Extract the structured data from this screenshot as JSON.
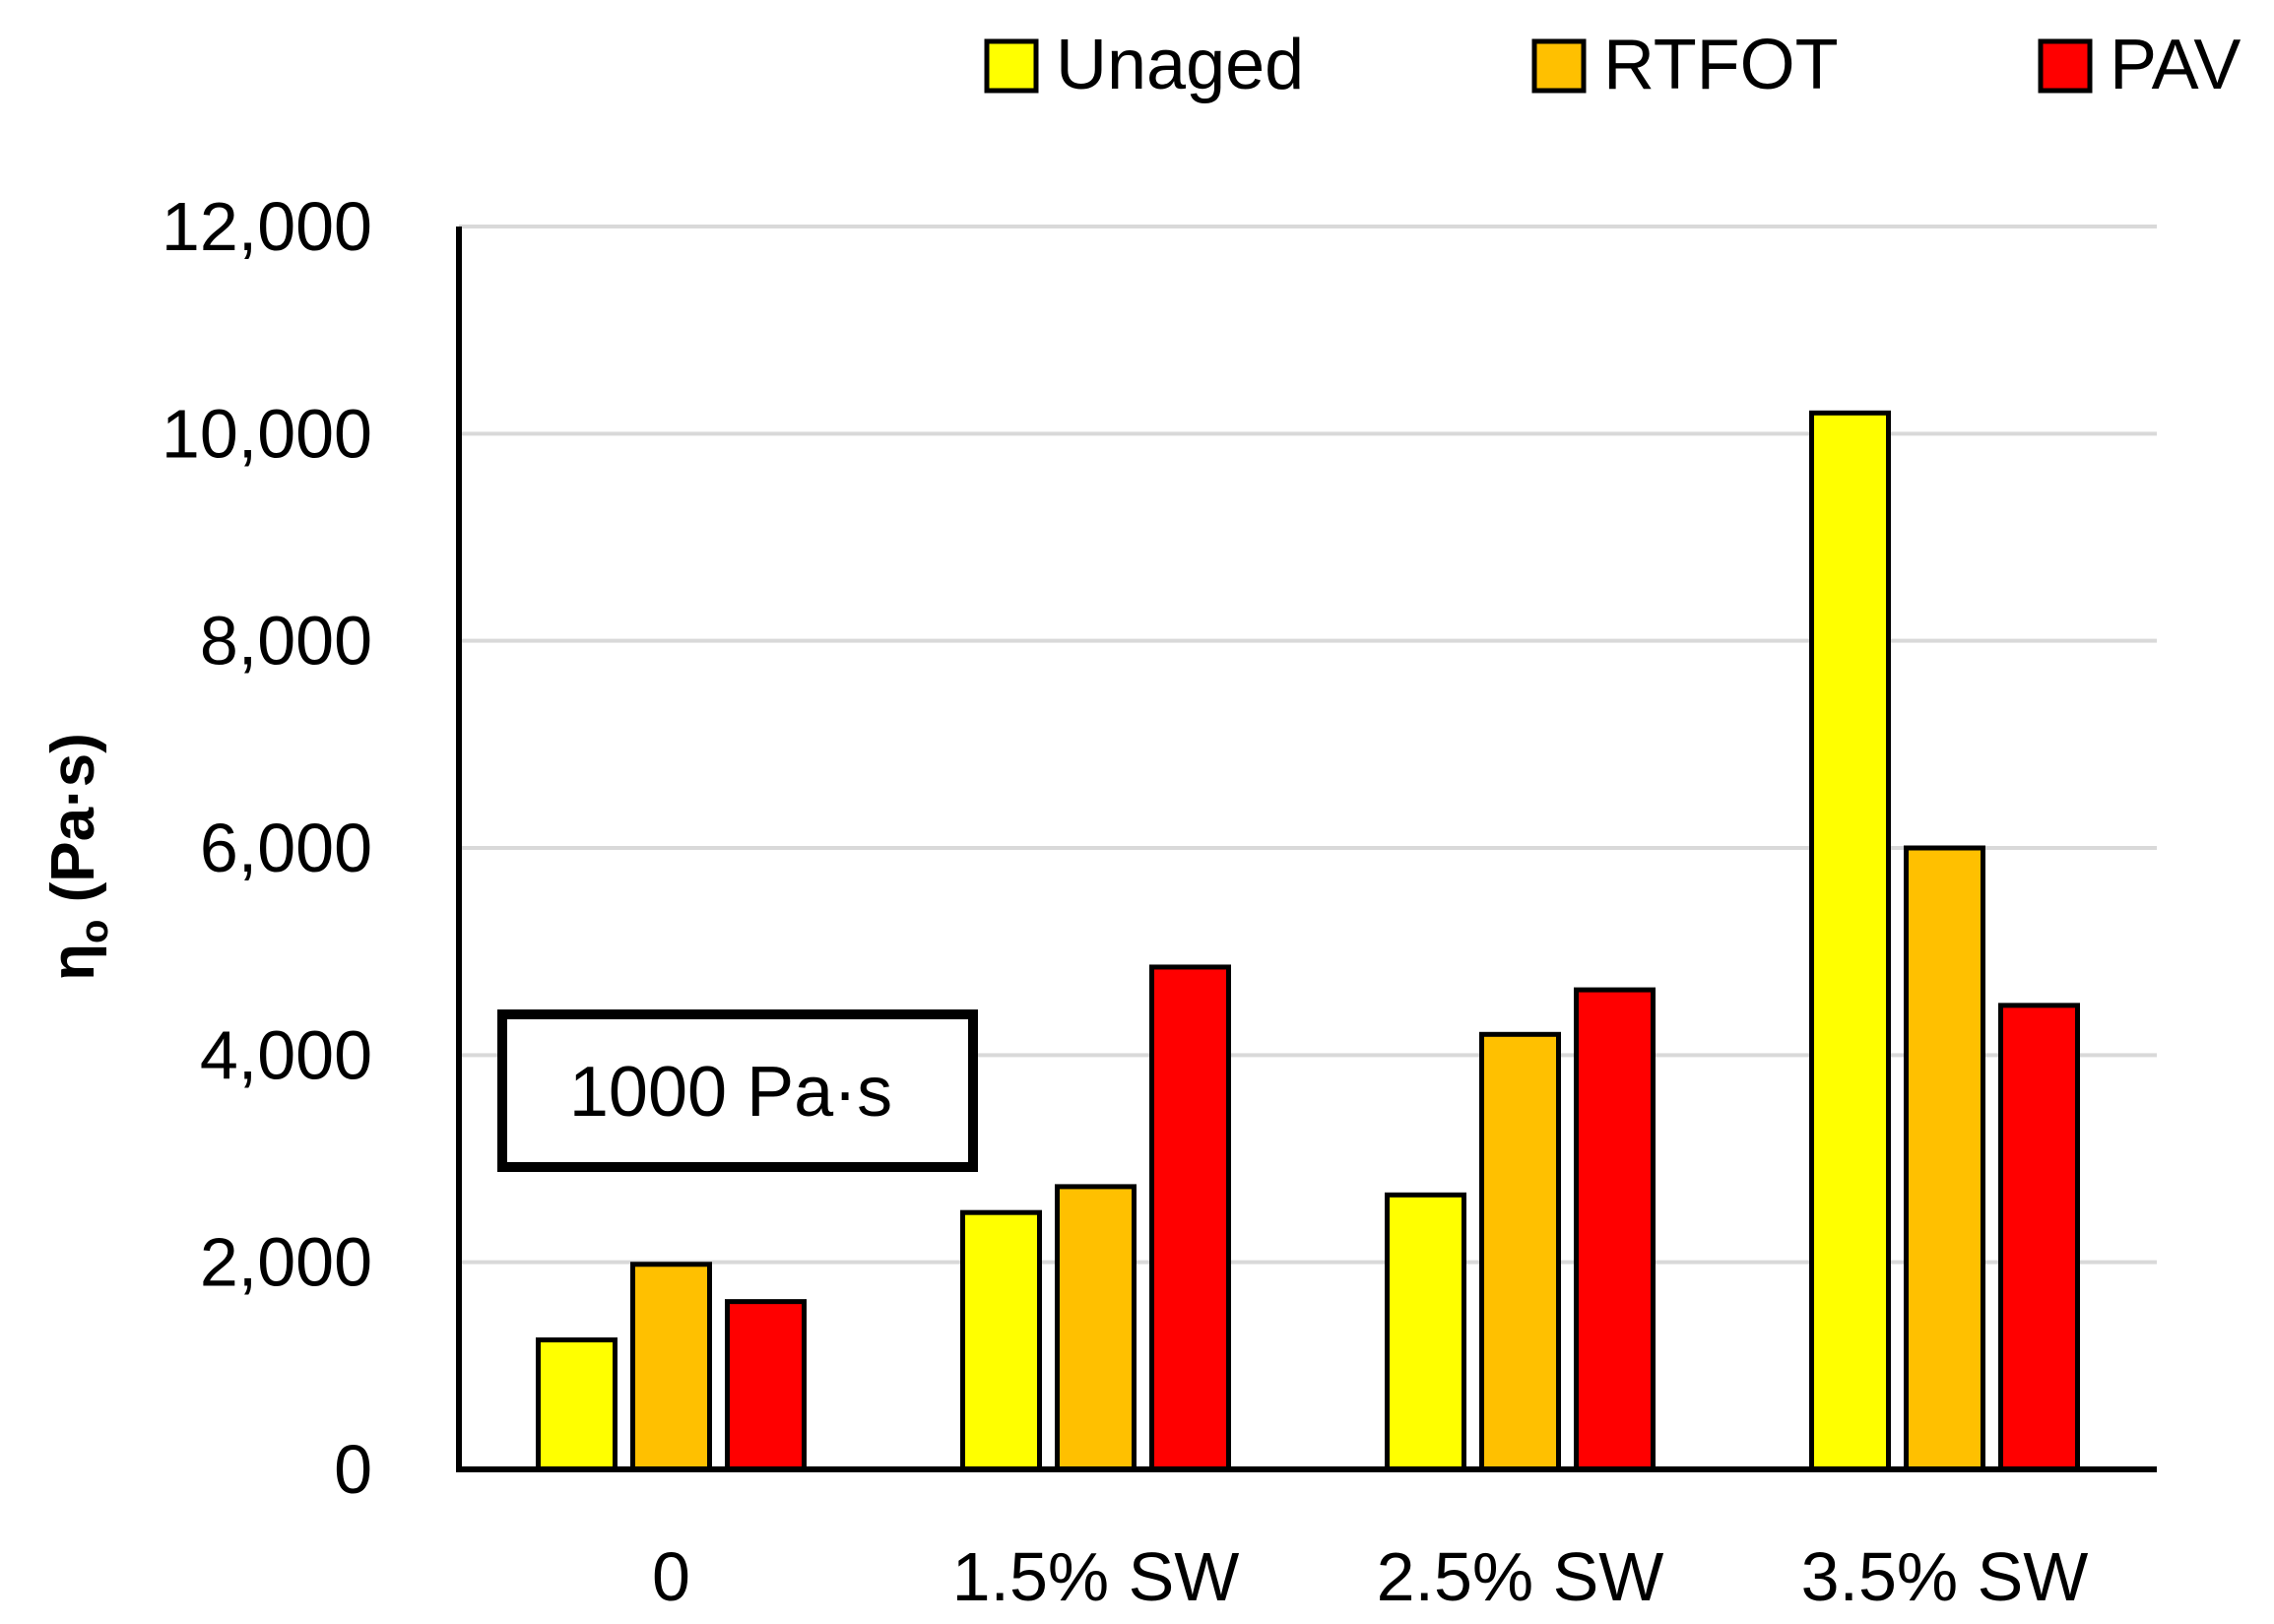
{
  "chart_data": {
    "type": "bar",
    "title": "",
    "xlabel": "",
    "ylabel": "ηo (Pa·s)",
    "ylabel_main": "η",
    "ylabel_sub": "o",
    "ylabel_unit": " (Pa·s)",
    "ylim": [
      0,
      12000
    ],
    "yticks": [
      0,
      2000,
      4000,
      6000,
      8000,
      10000,
      12000
    ],
    "ytick_labels": [
      "0",
      "2,000",
      "4,000",
      "6,000",
      "8,000",
      "10,000",
      "12,000"
    ],
    "grid": true,
    "categories": [
      "0",
      "1.5% SW",
      "2.5% SW",
      "3.5% SW"
    ],
    "series": [
      {
        "name": "Unaged",
        "color": "#FFFF00",
        "values": [
          1250,
          2480,
          2650,
          10200
        ]
      },
      {
        "name": "RTFOT",
        "color": "#FFC000",
        "values": [
          1980,
          2730,
          4200,
          6000
        ]
      },
      {
        "name": "PAV",
        "color": "#FF0000",
        "values": [
          1620,
          4850,
          4630,
          4480
        ]
      }
    ],
    "legend_position": "top-right",
    "annotation": "1000 Pa·s"
  }
}
